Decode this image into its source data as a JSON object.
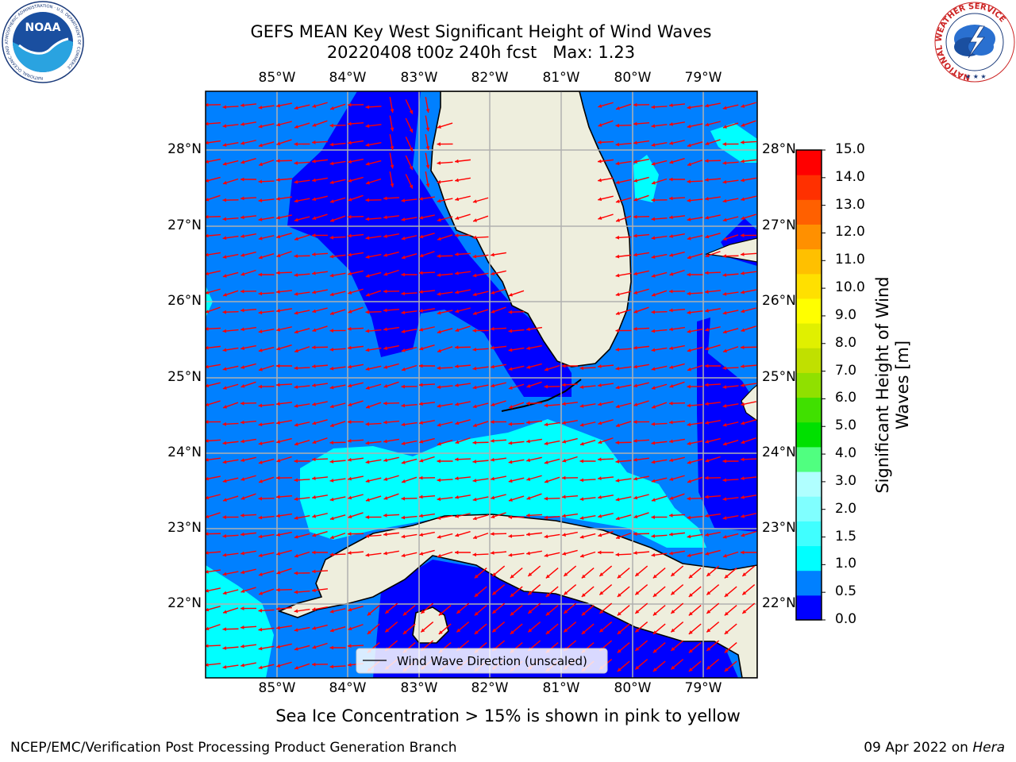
{
  "header": {
    "title_line1": "GEFS MEAN Key West Significant Height of Wind Waves",
    "title_line2": "20220408 t00z 240h fcst   Max: 1.23"
  },
  "logos": {
    "noaa_text": "NOAA",
    "noaa_ring": "NATIONAL OCEANIC AND ATMOSPHERIC ADMINISTRATION · U.S. DEPARTMENT OF COMMERCE",
    "nws_ring": "NATIONAL WEATHER SERVICE"
  },
  "map": {
    "lon_labels": [
      "85°W",
      "84°W",
      "83°W",
      "82°W",
      "81°W",
      "80°W",
      "79°W"
    ],
    "lat_labels": [
      "28°N",
      "27°N",
      "26°N",
      "25°N",
      "24°N",
      "23°N",
      "22°N"
    ],
    "legend_label": "Wind Wave Direction (unscaled)",
    "land_color": "#eeeedd",
    "arrow_color": "#ff0000"
  },
  "colorbar": {
    "label": "Significant Height of Wind Waves [m]",
    "ticks": [
      "0.0",
      "0.5",
      "1.0",
      "1.5",
      "2.0",
      "3.0",
      "4.0",
      "5.0",
      "6.0",
      "7.0",
      "8.0",
      "9.0",
      "10.0",
      "11.0",
      "12.0",
      "13.0",
      "14.0",
      "15.0"
    ],
    "colors": [
      "#0000ff",
      "#0080ff",
      "#00ffff",
      "#40ffff",
      "#80ffff",
      "#b0ffff",
      "#50ff80",
      "#00e000",
      "#40e000",
      "#90e000",
      "#c0e000",
      "#e0f000",
      "#ffff00",
      "#ffe000",
      "#ffc000",
      "#ff9000",
      "#ff6000",
      "#ff3000",
      "#ff0000"
    ]
  },
  "footer": {
    "ice_note": "Sea Ice Concentration > 15% is shown in pink to yellow",
    "left": "NCEP/EMC/Verification Post Processing Product Generation Branch",
    "date": "09 Apr 2022 on ",
    "machine": "Hera"
  }
}
